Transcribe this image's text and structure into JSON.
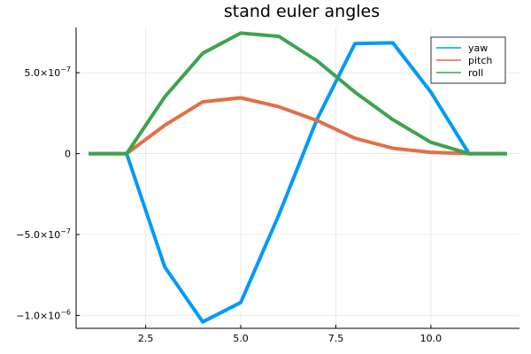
{
  "chart_data": {
    "type": "line",
    "title": "stand euler angles",
    "xlabel": "",
    "ylabel": "",
    "xlim": [
      0.67,
      12.33
    ],
    "ylim": [
      -1.08e-06,
      7.8e-07
    ],
    "grid": true,
    "legend_position": "top-right",
    "x_ticks": [
      2.5,
      5.0,
      7.5,
      10.0
    ],
    "x_tick_labels": [
      "2.5",
      "5.0",
      "7.5",
      "10.0"
    ],
    "y_ticks": [
      -1e-06,
      -5e-07,
      0,
      5e-07
    ],
    "y_tick_labels": [
      "−1.0×10",
      "−5.0×10",
      "0",
      "5.0×10"
    ],
    "y_tick_exponents": [
      "−6",
      "−7",
      "",
      "−7"
    ],
    "x": [
      1,
      2,
      3,
      4,
      5,
      6,
      7,
      8,
      9,
      10,
      11,
      12
    ],
    "series": [
      {
        "name": "yaw",
        "color": "#009af9",
        "values": [
          0,
          0,
          -7e-07,
          -1.04e-06,
          -9.2e-07,
          -3.8e-07,
          2.1e-07,
          6.8e-07,
          6.85e-07,
          3.8e-07,
          0,
          0
        ]
      },
      {
        "name": "pitch",
        "color": "#e26f46",
        "values": [
          0,
          0,
          1.75e-07,
          3.2e-07,
          3.45e-07,
          2.9e-07,
          2.05e-07,
          9.5e-08,
          3.3e-08,
          8e-09,
          0,
          0
        ]
      },
      {
        "name": "roll",
        "color": "#3da44d",
        "values": [
          0,
          0,
          3.5e-07,
          6.2e-07,
          7.45e-07,
          7.25e-07,
          5.75e-07,
          3.8e-07,
          2.1e-07,
          7e-08,
          0,
          0
        ]
      }
    ]
  }
}
